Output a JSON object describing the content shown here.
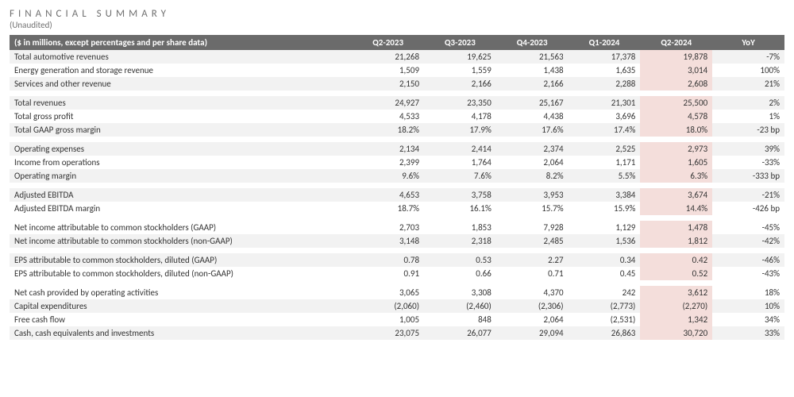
{
  "title": "FINANCIAL SUMMARY",
  "subtitle": "(Unaudited)",
  "header_note": "($ in millions, except percentages and per share data)",
  "columns": [
    "Q2-2023",
    "Q3-2023",
    "Q4-2023",
    "Q1-2024",
    "Q2-2024",
    "YoY"
  ],
  "highlight_col_index": 4,
  "colors": {
    "header_bg": "#6b6b6b",
    "header_fg": "#ffffff",
    "stripe_bg": "#f2f2f2",
    "highlight_bg": "#f4dedb",
    "title_color": "#707070"
  },
  "groups": [
    {
      "rows": [
        {
          "label": "Total automotive revenues",
          "cells": [
            "21,268",
            "19,625",
            "21,563",
            "17,378",
            "19,878",
            "-7%"
          ],
          "stripe": true
        },
        {
          "label": "Energy generation and storage revenue",
          "cells": [
            "1,509",
            "1,559",
            "1,438",
            "1,635",
            "3,014",
            "100%"
          ],
          "stripe": false
        },
        {
          "label": "Services and other revenue",
          "cells": [
            "2,150",
            "2,166",
            "2,166",
            "2,288",
            "2,608",
            "21%"
          ],
          "stripe": true
        }
      ]
    },
    {
      "rows": [
        {
          "label": "Total revenues",
          "cells": [
            "24,927",
            "23,350",
            "25,167",
            "21,301",
            "25,500",
            "2%"
          ],
          "stripe": true
        },
        {
          "label": "Total gross profit",
          "cells": [
            "4,533",
            "4,178",
            "4,438",
            "3,696",
            "4,578",
            "1%"
          ],
          "stripe": false
        },
        {
          "label": "Total GAAP gross margin",
          "cells": [
            "18.2%",
            "17.9%",
            "17.6%",
            "17.4%",
            "18.0%",
            "-23 bp"
          ],
          "stripe": true
        }
      ]
    },
    {
      "rows": [
        {
          "label": "Operating expenses",
          "cells": [
            "2,134",
            "2,414",
            "2,374",
            "2,525",
            "2,973",
            "39%"
          ],
          "stripe": true
        },
        {
          "label": "Income from operations",
          "cells": [
            "2,399",
            "1,764",
            "2,064",
            "1,171",
            "1,605",
            "-33%"
          ],
          "stripe": false
        },
        {
          "label": "Operating margin",
          "cells": [
            "9.6%",
            "7.6%",
            "8.2%",
            "5.5%",
            "6.3%",
            "-333 bp"
          ],
          "stripe": true
        }
      ]
    },
    {
      "rows": [
        {
          "label": "Adjusted EBITDA",
          "cells": [
            "4,653",
            "3,758",
            "3,953",
            "3,384",
            "3,674",
            "-21%"
          ],
          "stripe": true
        },
        {
          "label": "Adjusted EBITDA margin",
          "cells": [
            "18.7%",
            "16.1%",
            "15.7%",
            "15.9%",
            "14.4%",
            "-426 bp"
          ],
          "stripe": false
        }
      ]
    },
    {
      "rows": [
        {
          "label": "Net income attributable to common stockholders (GAAP)",
          "cells": [
            "2,703",
            "1,853",
            "7,928",
            "1,129",
            "1,478",
            "-45%"
          ],
          "stripe": false
        },
        {
          "label": "Net income attributable to common stockholders (non-GAAP)",
          "cells": [
            "3,148",
            "2,318",
            "2,485",
            "1,536",
            "1,812",
            "-42%"
          ],
          "stripe": true
        }
      ]
    },
    {
      "rows": [
        {
          "label": "EPS attributable to common stockholders, diluted (GAAP)",
          "cells": [
            "0.78",
            "0.53",
            "2.27",
            "0.34",
            "0.42",
            "-46%"
          ],
          "stripe": true
        },
        {
          "label": "EPS attributable to common stockholders, diluted (non-GAAP)",
          "cells": [
            "0.91",
            "0.66",
            "0.71",
            "0.45",
            "0.52",
            "-43%"
          ],
          "stripe": false
        }
      ]
    },
    {
      "rows": [
        {
          "label": "Net cash provided by operating activities",
          "cells": [
            "3,065",
            "3,308",
            "4,370",
            "242",
            "3,612",
            "18%"
          ],
          "stripe": false
        },
        {
          "label": "Capital expenditures",
          "cells": [
            "(2,060)",
            "(2,460)",
            "(2,306)",
            "(2,773)",
            "(2,270)",
            "10%"
          ],
          "stripe": true
        },
        {
          "label": "Free cash flow",
          "cells": [
            "1,005",
            "848",
            "2,064",
            "(2,531)",
            "1,342",
            "34%"
          ],
          "stripe": false
        },
        {
          "label": "Cash, cash equivalents and investments",
          "cells": [
            "23,075",
            "26,077",
            "29,094",
            "26,863",
            "30,720",
            "33%"
          ],
          "stripe": true
        }
      ]
    }
  ]
}
